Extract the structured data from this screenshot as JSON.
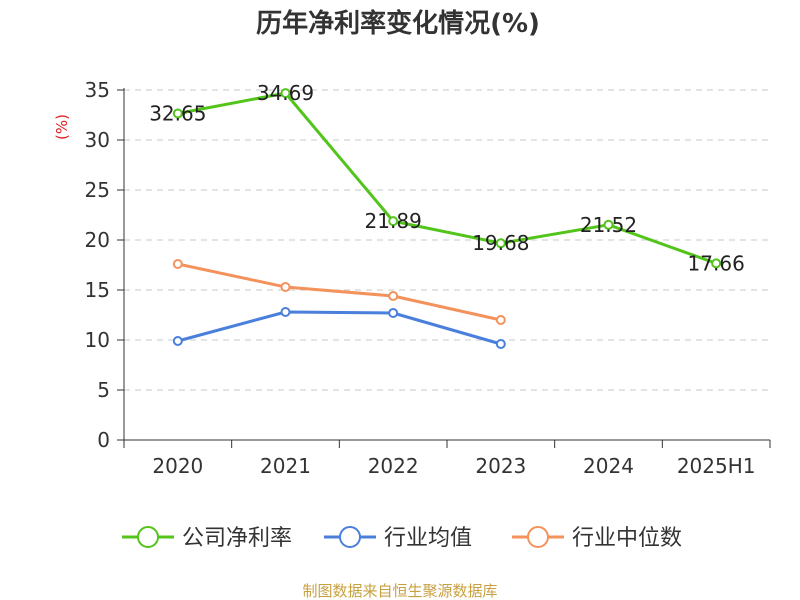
{
  "chart_data": {
    "type": "line",
    "title": "历年净利率变化情况(%)",
    "ylabel": "(%)",
    "ylim": [
      0,
      35
    ],
    "yticks": [
      0,
      5,
      10,
      15,
      20,
      25,
      30,
      35
    ],
    "categories": [
      "2020",
      "2021",
      "2022",
      "2023",
      "2024",
      "2025H1"
    ],
    "grid": "horizontal dashed",
    "legend_position": "bottom",
    "series": [
      {
        "name": "公司净利率",
        "color": "#52c41a",
        "values": [
          32.65,
          34.69,
          21.89,
          19.68,
          21.52,
          17.66
        ],
        "labels": [
          "32.65",
          "34.69",
          "21.89",
          "19.68",
          "21.52",
          "17.66"
        ]
      },
      {
        "name": "行业均值",
        "color": "#4a7fdb",
        "values": [
          9.9,
          12.8,
          12.7,
          9.6,
          null,
          null
        ]
      },
      {
        "name": "行业中位数",
        "color": "#f4925c",
        "values": [
          17.6,
          15.3,
          14.4,
          12.0,
          null,
          null
        ]
      }
    ]
  },
  "footer": {
    "source": "制图数据来自恒生聚源数据库"
  }
}
